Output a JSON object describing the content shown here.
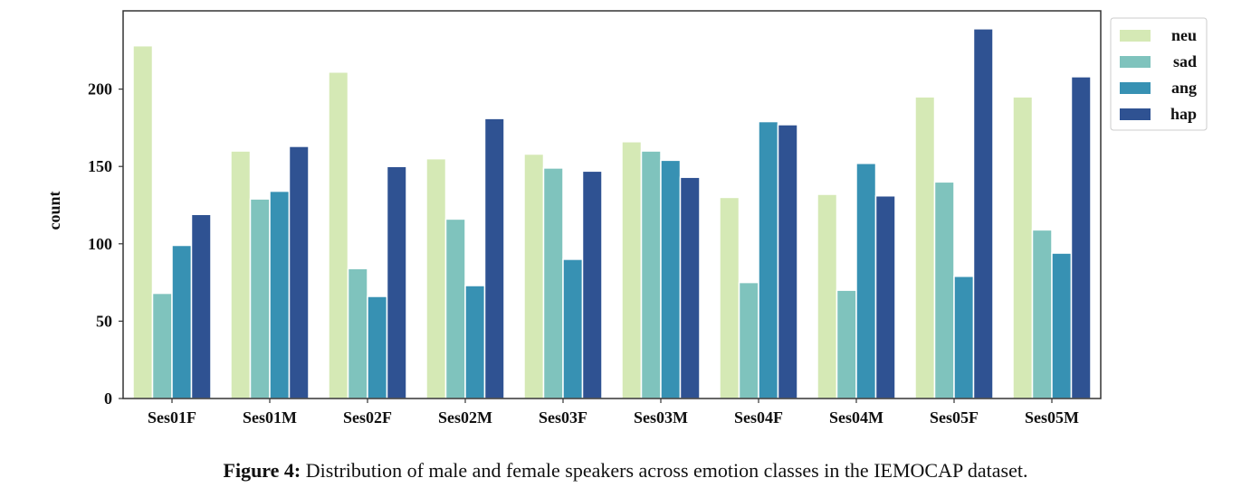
{
  "chart_data": {
    "type": "bar",
    "categories": [
      "Ses01F",
      "Ses01M",
      "Ses02F",
      "Ses02M",
      "Ses03F",
      "Ses03M",
      "Ses04F",
      "Ses04M",
      "Ses05F",
      "Ses05M"
    ],
    "series": [
      {
        "name": "neu",
        "color": "#d5e9b5",
        "values": [
          228,
          160,
          211,
          155,
          158,
          166,
          130,
          132,
          195,
          195
        ]
      },
      {
        "name": "sad",
        "color": "#7fc3bd",
        "values": [
          68,
          129,
          84,
          116,
          149,
          160,
          75,
          70,
          140,
          109
        ]
      },
      {
        "name": "ang",
        "color": "#3791b3",
        "values": [
          99,
          134,
          66,
          73,
          90,
          154,
          179,
          152,
          79,
          94
        ]
      },
      {
        "name": "hap",
        "color": "#2f5292",
        "values": [
          119,
          163,
          150,
          181,
          147,
          143,
          177,
          131,
          239,
          208
        ]
      }
    ],
    "title": "",
    "xlabel": "",
    "ylabel": "count",
    "ylim": [
      0,
      250
    ],
    "yticks": [
      0,
      50,
      100,
      150,
      200
    ],
    "grid": false,
    "legend": "right-top-outside"
  },
  "caption": {
    "label": "Figure 4:",
    "text": " Distribution of male and female speakers across emotion classes in the IEMOCAP dataset."
  }
}
